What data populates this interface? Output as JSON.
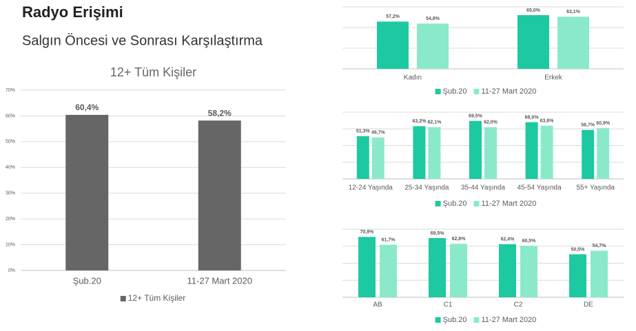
{
  "header": {
    "title": "Radyo Erişimi",
    "subtitle": "Salgın Öncesi ve Sonrası Karşılaştırma"
  },
  "chart_data": [
    {
      "type": "bar",
      "title": "12+ Tüm Kişiler",
      "categories": [
        "Şub.20",
        "11-27 Mart 2020"
      ],
      "series": [
        {
          "name": "12+ Tüm Kişiler",
          "color": "#666666",
          "values": [
            60.4,
            58.2
          ],
          "value_labels": [
            "60,4%",
            "58,2%"
          ]
        }
      ],
      "ylim": [
        0,
        70
      ],
      "yticks": [
        {
          "value": 0,
          "label": "0%"
        },
        {
          "value": 10,
          "label": "10%"
        },
        {
          "value": 20,
          "label": "20%"
        },
        {
          "value": 30,
          "label": "30%"
        },
        {
          "value": 40,
          "label": "40%"
        },
        {
          "value": 50,
          "label": "50%"
        },
        {
          "value": 60,
          "label": "60%"
        },
        {
          "value": 70,
          "label": "70%"
        }
      ],
      "grid": true,
      "legend": "bottom"
    },
    {
      "type": "bar",
      "categories": [
        "Kadın",
        "Erkek"
      ],
      "series": [
        {
          "name": "Şub.20",
          "color": "#1dc9a0",
          "values": [
            57.2,
            65.0
          ],
          "value_labels": [
            "57,2%",
            "65,0%"
          ]
        },
        {
          "name": "11-27 Mart 2020",
          "color": "#8ae9cb",
          "values": [
            54.8,
            63.1
          ],
          "value_labels": [
            "54,8%",
            "63,1%"
          ]
        }
      ],
      "ylim": [
        0,
        75
      ],
      "yticks": [
        0,
        25,
        50,
        75
      ],
      "grid": true,
      "legend": "bottom"
    },
    {
      "type": "bar",
      "categories": [
        "12-24 Yaşında",
        "25-34 Yaşında",
        "35-44 Yaşında",
        "45-54 Yaşında",
        "55+ Yaşında"
      ],
      "series": [
        {
          "name": "Şub.20",
          "color": "#1dc9a0",
          "values": [
            51.3,
            63.2,
            69.5,
            68.0,
            58.7
          ],
          "value_labels": [
            "51,3%",
            "63,2%",
            "69,5%",
            "68,0%",
            "58,7%"
          ]
        },
        {
          "name": "11-27 Mart 2020",
          "color": "#8ae9cb",
          "values": [
            49.7,
            62.1,
            62.0,
            63.8,
            60.9
          ],
          "value_labels": [
            "49,7%",
            "62,1%",
            "62,0%",
            "63,8%",
            "60,9%"
          ]
        }
      ],
      "ylim": [
        0,
        80
      ],
      "yticks": [
        0,
        20,
        40,
        60,
        80
      ],
      "grid": true,
      "legend": "bottom"
    },
    {
      "type": "bar",
      "categories": [
        "AB",
        "C1",
        "C2",
        "DE"
      ],
      "series": [
        {
          "name": "Şub.20",
          "color": "#1dc9a0",
          "values": [
            70.9,
            69.5,
            62.4,
            50.5
          ],
          "value_labels": [
            "70,9%",
            "69,5%",
            "62,4%",
            "50,5%"
          ]
        },
        {
          "name": "11-27 Mart 2020",
          "color": "#8ae9cb",
          "values": [
            61.7,
            62.8,
            60.5,
            54.7
          ],
          "value_labels": [
            "61,7%",
            "62,8%",
            "60,5%",
            "54,7%"
          ]
        }
      ],
      "ylim": [
        0,
        80
      ],
      "yticks": [
        0,
        20,
        40,
        60,
        80
      ],
      "grid": true,
      "legend": "bottom"
    }
  ]
}
